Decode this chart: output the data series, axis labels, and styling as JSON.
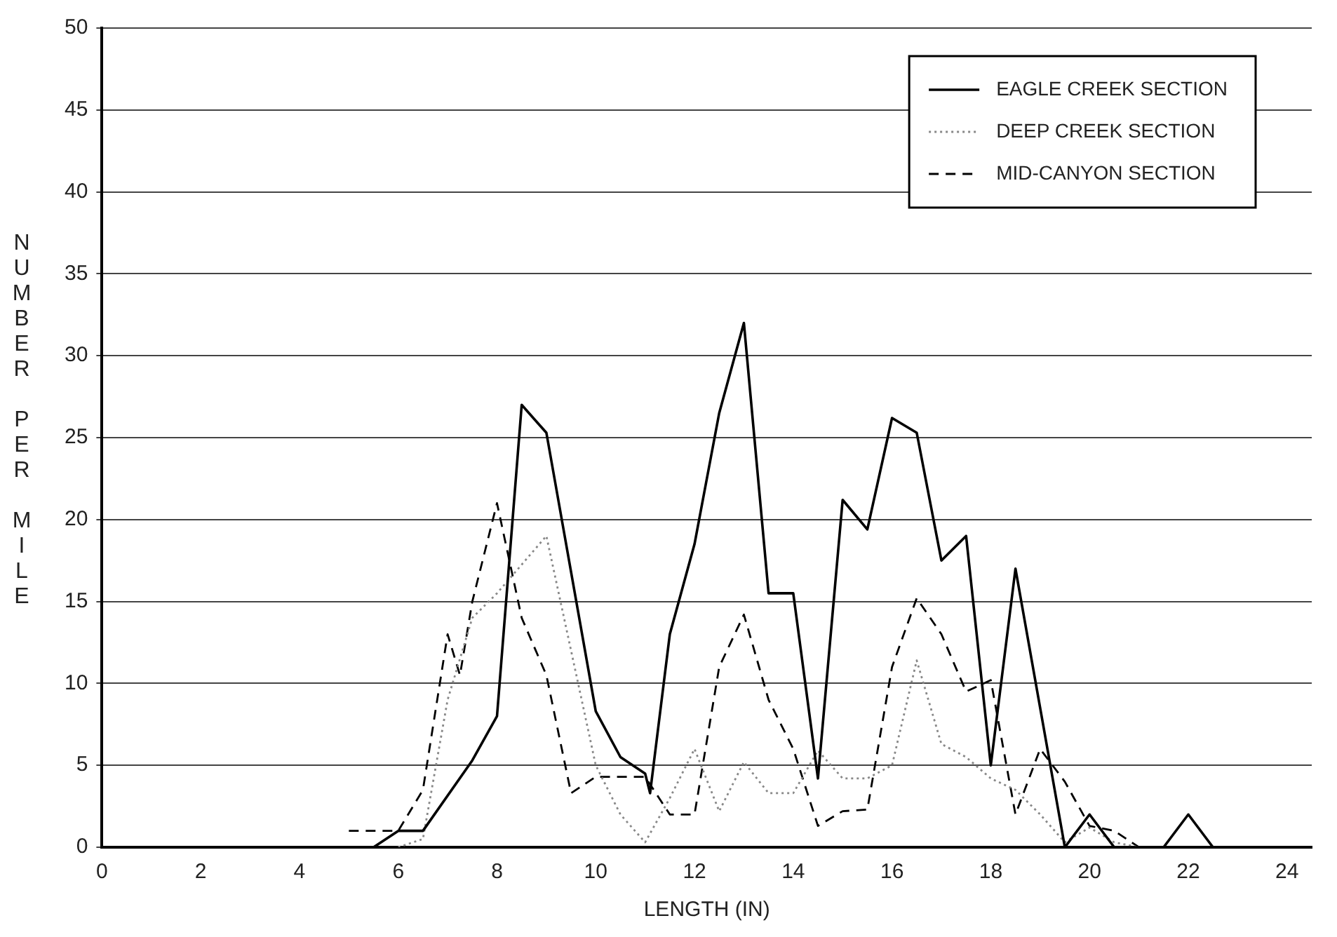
{
  "chart_data": {
    "type": "line",
    "xlabel": "LENGTH (IN)",
    "ylabel": "NUMBER PER MILE",
    "xlim": [
      0,
      24.5
    ],
    "xticks": [
      0,
      2,
      4,
      6,
      8,
      10,
      12,
      14,
      16,
      18,
      20,
      22,
      24
    ],
    "ylim": [
      0,
      50
    ],
    "yticks": [
      0,
      5,
      10,
      15,
      20,
      25,
      30,
      35,
      40,
      45,
      50
    ],
    "grid": "y",
    "legend": "top right",
    "marker": "none",
    "series": [
      {
        "name": "EAGLE CREEK SECTION",
        "color": "#000000",
        "line_style": "solid",
        "x": [
          5.5,
          6,
          6.5,
          7.5,
          8,
          8.5,
          9,
          10,
          10.5,
          11,
          11.1,
          11.5,
          12,
          12.5,
          13,
          13.5,
          14,
          14.5,
          15,
          15.5,
          16,
          16.5,
          17,
          17.5,
          18,
          18.5,
          19.5,
          20,
          20.5,
          21.5,
          22,
          22.5
        ],
        "values": [
          0,
          1,
          1,
          5.3,
          8,
          27,
          25.3,
          8.3,
          5.5,
          4.5,
          3.3,
          13,
          18.5,
          26.5,
          32,
          15.5,
          15.5,
          4.2,
          21.2,
          19.4,
          26.2,
          25.3,
          17.5,
          19,
          5,
          17,
          0,
          2,
          0,
          0,
          2,
          0
        ]
      },
      {
        "name": "DEEP CREEK SECTION",
        "color": "#888888",
        "line_style": "dotted",
        "x": [
          6,
          6.5,
          7,
          7.5,
          8,
          9,
          9.5,
          10,
          10.5,
          11,
          11.5,
          12,
          12.5,
          13,
          13.5,
          14,
          14.5,
          15,
          15.5,
          16,
          16.5,
          17,
          17.5,
          18,
          18.5,
          19,
          19.5,
          20,
          20.5,
          21
        ],
        "values": [
          0,
          0.5,
          9,
          14,
          15.5,
          19,
          12,
          5,
          2,
          0.3,
          3,
          6,
          2.2,
          5.2,
          3.3,
          3.3,
          5.9,
          4.2,
          4.2,
          5,
          11.4,
          6.3,
          5.5,
          4.2,
          3.5,
          2,
          0.3,
          1.2,
          0.3,
          0
        ]
      },
      {
        "name": "MID-CANYON SECTION",
        "color": "#000000",
        "line_style": "dashed",
        "x": [
          5,
          5.5,
          6,
          6.5,
          7,
          7.25,
          7.5,
          8,
          8.5,
          9,
          9.5,
          10,
          10.5,
          11,
          11.5,
          12,
          12.5,
          13,
          13.5,
          14,
          14.5,
          15,
          15.5,
          16,
          16.5,
          17,
          17.5,
          18,
          18.5,
          19,
          19.5,
          20,
          20.5,
          21
        ],
        "values": [
          1,
          1,
          1,
          3.5,
          13,
          10.5,
          15,
          21,
          14,
          10.5,
          3.3,
          4.3,
          4.3,
          4.3,
          2,
          2,
          11,
          14.2,
          9,
          6,
          1.3,
          2.2,
          2.3,
          11,
          15.2,
          13,
          9.5,
          10.2,
          2,
          6,
          4,
          1.3,
          1,
          0
        ]
      }
    ]
  }
}
